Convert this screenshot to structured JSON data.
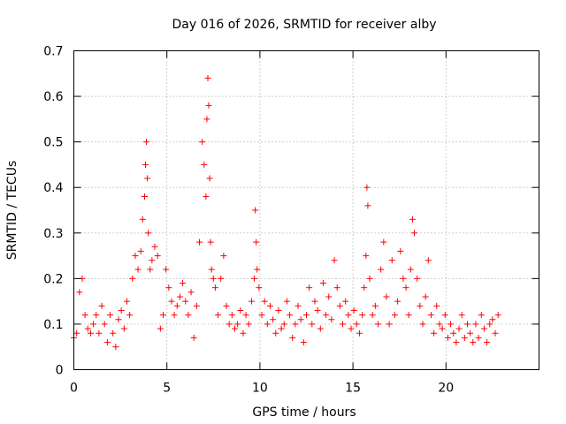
{
  "chart_data": {
    "type": "scatter",
    "title": "Day 016 of 2026, SRMTID for receiver alby",
    "xlabel": "GPS time / hours",
    "ylabel": "SRMTID / TECUs",
    "xlim": [
      0,
      25
    ],
    "ylim": [
      0,
      0.7
    ],
    "xticks": [
      0,
      5,
      10,
      15,
      20
    ],
    "xtick_labels": [
      "0",
      "5",
      "10",
      "15",
      "20"
    ],
    "yticks": [
      0,
      0.1,
      0.2,
      0.3,
      0.4,
      0.5,
      0.6,
      0.7
    ],
    "ytick_labels": [
      "0",
      "0.1",
      "0.2",
      "0.3",
      "0.4",
      "0.5",
      "0.6",
      "0.7"
    ],
    "grid": true,
    "marker": "+",
    "series": [
      {
        "name": "SRMTID",
        "color": "#ff0000",
        "x": [
          0.0,
          0.15,
          0.3,
          0.45,
          0.6,
          0.75,
          0.9,
          1.05,
          1.2,
          1.35,
          1.5,
          1.65,
          1.8,
          1.95,
          2.1,
          2.25,
          2.4,
          2.55,
          2.7,
          2.85,
          3.0,
          3.15,
          3.3,
          3.45,
          3.6,
          3.7,
          3.8,
          3.85,
          3.9,
          3.95,
          4.0,
          4.1,
          4.2,
          4.35,
          4.5,
          4.65,
          4.8,
          4.95,
          5.1,
          5.25,
          5.4,
          5.55,
          5.7,
          5.85,
          6.0,
          6.15,
          6.3,
          6.45,
          6.6,
          6.75,
          6.9,
          7.0,
          7.1,
          7.15,
          7.2,
          7.25,
          7.3,
          7.35,
          7.4,
          7.5,
          7.6,
          7.75,
          7.9,
          8.05,
          8.2,
          8.35,
          8.5,
          8.65,
          8.8,
          8.95,
          9.1,
          9.25,
          9.4,
          9.55,
          9.7,
          9.75,
          9.8,
          9.85,
          9.95,
          10.1,
          10.25,
          10.4,
          10.55,
          10.7,
          10.85,
          11.0,
          11.15,
          11.3,
          11.45,
          11.6,
          11.75,
          11.9,
          12.05,
          12.2,
          12.35,
          12.5,
          12.65,
          12.8,
          12.95,
          13.1,
          13.25,
          13.4,
          13.55,
          13.7,
          13.85,
          14.0,
          14.15,
          14.3,
          14.45,
          14.6,
          14.75,
          14.9,
          15.05,
          15.2,
          15.35,
          15.5,
          15.6,
          15.7,
          15.75,
          15.8,
          15.9,
          16.05,
          16.2,
          16.35,
          16.5,
          16.65,
          16.8,
          16.95,
          17.1,
          17.25,
          17.4,
          17.55,
          17.7,
          17.85,
          18.0,
          18.1,
          18.2,
          18.3,
          18.45,
          18.6,
          18.75,
          18.9,
          19.05,
          19.2,
          19.35,
          19.5,
          19.65,
          19.8,
          19.95,
          20.1,
          20.25,
          20.4,
          20.55,
          20.7,
          20.85,
          21.0,
          21.15,
          21.3,
          21.45,
          21.6,
          21.75,
          21.9,
          22.05,
          22.2,
          22.35,
          22.5,
          22.65,
          22.8
        ],
        "y": [
          0.07,
          0.08,
          0.17,
          0.2,
          0.12,
          0.09,
          0.08,
          0.1,
          0.12,
          0.08,
          0.14,
          0.1,
          0.06,
          0.12,
          0.08,
          0.05,
          0.11,
          0.13,
          0.09,
          0.15,
          0.12,
          0.2,
          0.25,
          0.22,
          0.26,
          0.33,
          0.38,
          0.45,
          0.5,
          0.42,
          0.3,
          0.22,
          0.24,
          0.27,
          0.25,
          0.09,
          0.12,
          0.22,
          0.18,
          0.15,
          0.12,
          0.14,
          0.16,
          0.19,
          0.15,
          0.12,
          0.17,
          0.07,
          0.14,
          0.28,
          0.5,
          0.45,
          0.38,
          0.55,
          0.64,
          0.58,
          0.42,
          0.28,
          0.22,
          0.2,
          0.18,
          0.12,
          0.2,
          0.25,
          0.14,
          0.1,
          0.12,
          0.09,
          0.1,
          0.13,
          0.08,
          0.12,
          0.1,
          0.15,
          0.2,
          0.35,
          0.28,
          0.22,
          0.18,
          0.12,
          0.15,
          0.1,
          0.14,
          0.11,
          0.08,
          0.13,
          0.09,
          0.1,
          0.15,
          0.12,
          0.07,
          0.1,
          0.14,
          0.11,
          0.06,
          0.12,
          0.18,
          0.1,
          0.15,
          0.13,
          0.09,
          0.19,
          0.12,
          0.16,
          0.11,
          0.24,
          0.18,
          0.14,
          0.1,
          0.15,
          0.12,
          0.09,
          0.13,
          0.1,
          0.08,
          0.12,
          0.18,
          0.25,
          0.4,
          0.36,
          0.2,
          0.12,
          0.14,
          0.1,
          0.22,
          0.28,
          0.16,
          0.1,
          0.24,
          0.12,
          0.15,
          0.26,
          0.2,
          0.18,
          0.12,
          0.22,
          0.33,
          0.3,
          0.2,
          0.14,
          0.1,
          0.16,
          0.24,
          0.12,
          0.08,
          0.14,
          0.1,
          0.09,
          0.12,
          0.07,
          0.1,
          0.08,
          0.06,
          0.09,
          0.12,
          0.07,
          0.1,
          0.08,
          0.06,
          0.1,
          0.07,
          0.12,
          0.09,
          0.06,
          0.1,
          0.11,
          0.08,
          0.12
        ]
      }
    ]
  }
}
